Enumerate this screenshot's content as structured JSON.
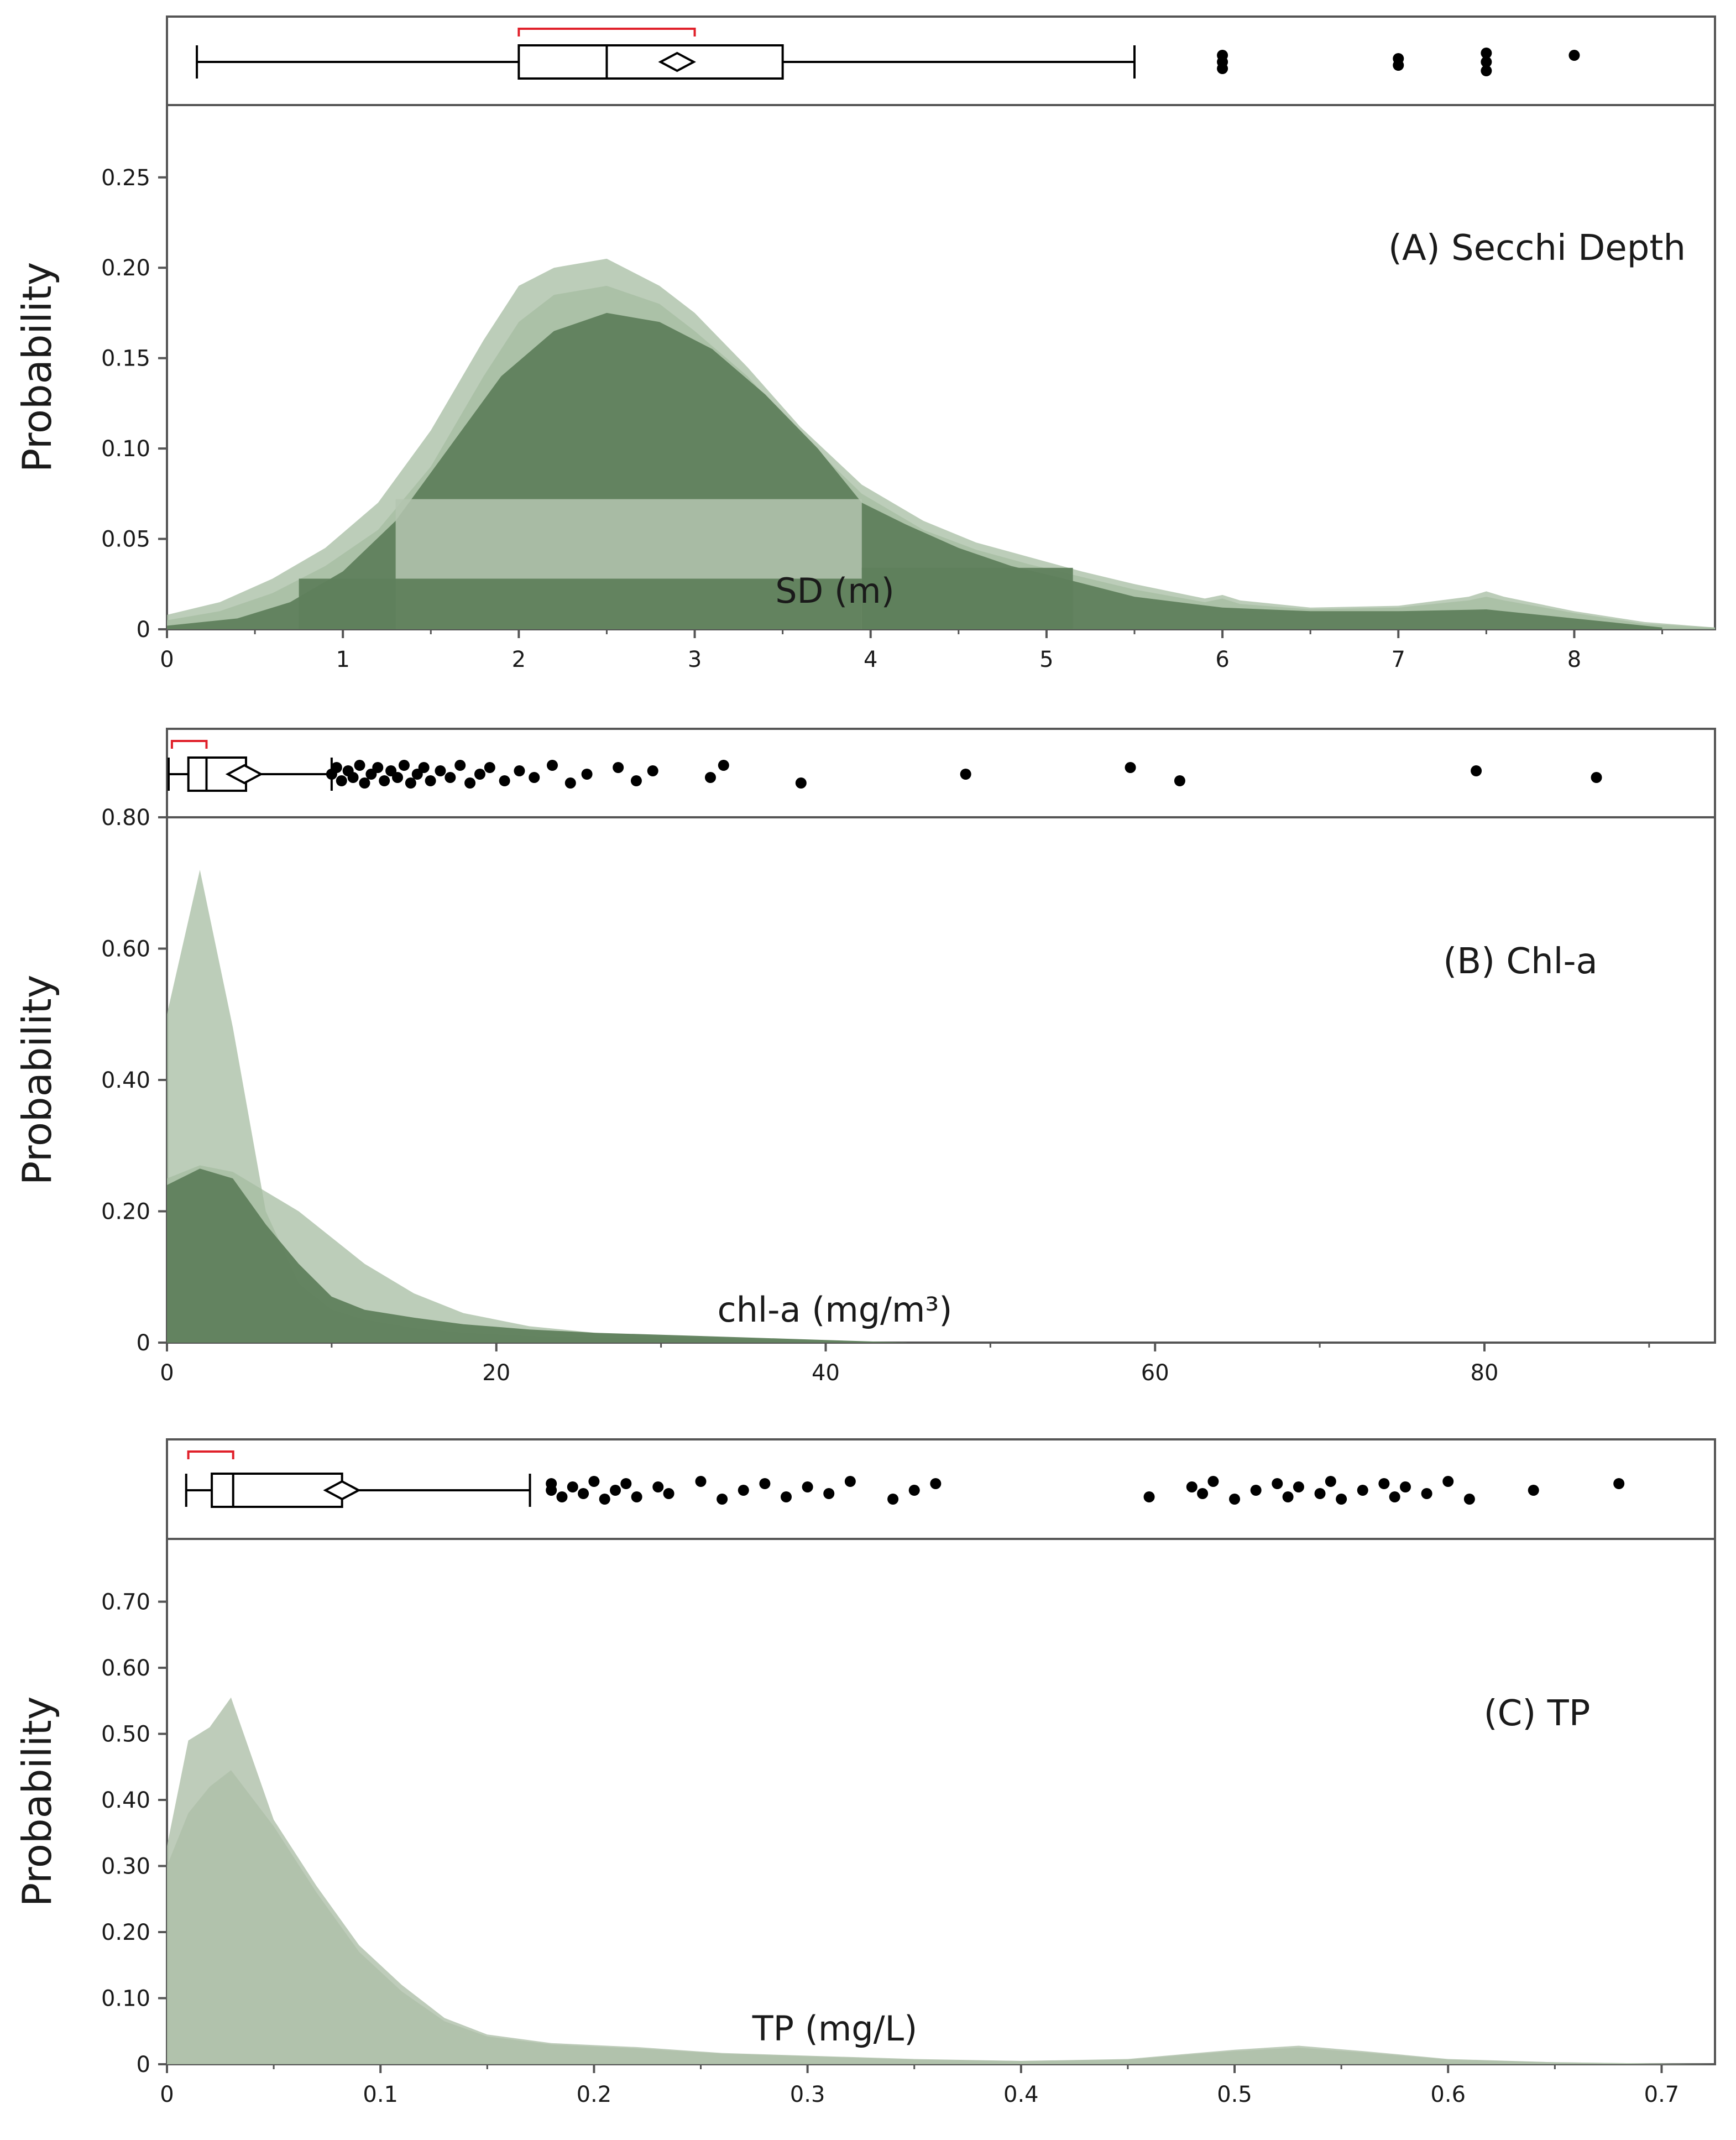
{
  "figure": {
    "colors": {
      "dark_fill": "#5f7f5c",
      "light_fill": "#a6bca2",
      "pale_fill": "#b4c6b0",
      "tp_fill": "#aebfa9",
      "frame": "#555555",
      "bracket": "#e0202a",
      "outlier": "#000000"
    }
  },
  "chart_data": [
    {
      "id": "A",
      "type": "area",
      "title": "(A) Secchi Depth",
      "xlabel": "SD (m)",
      "ylabel": "Probability",
      "xlim": [
        0,
        8.8
      ],
      "ylim": [
        0,
        0.29
      ],
      "xticks": [
        0,
        1,
        2,
        3,
        4,
        5,
        6,
        7,
        8
      ],
      "xtick_labels": [
        "0",
        "1",
        "2",
        "3",
        "4",
        "5",
        "6",
        "7",
        "8"
      ],
      "yticks": [
        0,
        0.05,
        0.1,
        0.15,
        0.2,
        0.25
      ],
      "ytick_labels": [
        "0",
        "0.05",
        "0.10",
        "0.15",
        "0.20",
        "0.25"
      ],
      "series": [
        {
          "name": "outer density",
          "style": "light",
          "x": [
            0,
            0.3,
            0.6,
            0.9,
            1.2,
            1.5,
            1.8,
            2.0,
            2.2,
            2.5,
            2.8,
            3.0,
            3.3,
            3.6,
            3.95,
            4.3,
            4.6,
            4.9,
            5.2,
            5.5,
            5.9,
            6.0,
            6.1,
            6.5,
            7.0,
            7.4,
            7.5,
            7.6,
            8.0,
            8.4,
            8.8
          ],
          "y": [
            0.008,
            0.015,
            0.028,
            0.045,
            0.07,
            0.11,
            0.16,
            0.19,
            0.2,
            0.205,
            0.19,
            0.175,
            0.145,
            0.112,
            0.08,
            0.06,
            0.048,
            0.04,
            0.032,
            0.025,
            0.017,
            0.019,
            0.016,
            0.012,
            0.013,
            0.018,
            0.021,
            0.018,
            0.01,
            0.004,
            0.001
          ]
        },
        {
          "name": "mid density",
          "style": "light",
          "x": [
            0,
            0.3,
            0.6,
            0.9,
            1.2,
            1.5,
            1.8,
            2.0,
            2.2,
            2.5,
            2.8,
            3.0,
            3.3,
            3.6,
            3.95,
            4.3,
            4.6,
            4.9,
            5.2,
            5.5,
            5.9,
            6.0,
            6.1,
            6.5,
            7.0,
            7.4,
            7.5,
            7.6,
            8.0,
            8.4,
            8.8
          ],
          "y": [
            0.005,
            0.01,
            0.02,
            0.035,
            0.055,
            0.09,
            0.14,
            0.17,
            0.185,
            0.19,
            0.18,
            0.165,
            0.14,
            0.108,
            0.075,
            0.055,
            0.044,
            0.036,
            0.029,
            0.022,
            0.015,
            0.017,
            0.014,
            0.011,
            0.012,
            0.016,
            0.018,
            0.016,
            0.009,
            0.003,
            0.001
          ]
        },
        {
          "name": "inner density",
          "style": "dark",
          "x": [
            0,
            0.4,
            0.7,
            1.0,
            1.3,
            1.6,
            1.9,
            2.2,
            2.5,
            2.8,
            3.1,
            3.4,
            3.7,
            3.95,
            4.2,
            4.5,
            4.8,
            5.1,
            5.5,
            6.0,
            6.5,
            7.0,
            7.5,
            8.0,
            8.5
          ],
          "y": [
            0.002,
            0.006,
            0.015,
            0.032,
            0.06,
            0.1,
            0.14,
            0.165,
            0.175,
            0.17,
            0.155,
            0.13,
            0.1,
            0.07,
            0.058,
            0.045,
            0.035,
            0.028,
            0.018,
            0.012,
            0.01,
            0.01,
            0.011,
            0.006,
            0.001
          ]
        }
      ],
      "bands": [
        {
          "x0": 1.3,
          "x1": 3.95,
          "y": 0.072,
          "style": "pale"
        },
        {
          "x0": 0.75,
          "x1": 3.95,
          "y": 0.028,
          "style": "dark"
        },
        {
          "x0": 3.95,
          "x1": 5.15,
          "y": 0.034,
          "style": "dark"
        }
      ],
      "boxplot": {
        "whisker_low": 0.17,
        "q1": 2.0,
        "median": 2.5,
        "q3": 3.5,
        "whisker_high": 5.5,
        "mean": 2.9,
        "shortest_half": [
          2.0,
          3.0
        ],
        "outliers": [
          6.0,
          6.0,
          6.0,
          7.0,
          7.0,
          7.5,
          7.5,
          7.5,
          8.0
        ]
      }
    },
    {
      "id": "B",
      "type": "area",
      "title": "(B) Chl-a",
      "xlabel": "chl-a (mg/m³)",
      "ylabel": "Probability",
      "xlim": [
        0,
        94
      ],
      "ylim": [
        0,
        0.8
      ],
      "xticks": [
        0,
        20,
        40,
        60,
        80
      ],
      "xtick_labels": [
        "0",
        "20",
        "40",
        "60",
        "80"
      ],
      "yticks": [
        0,
        0.2,
        0.4,
        0.6,
        0.8
      ],
      "ytick_labels": [
        "0",
        "0.20",
        "0.40",
        "0.60",
        "0.80"
      ],
      "series": [
        {
          "name": "outer density",
          "style": "light",
          "x": [
            0,
            2,
            4,
            6,
            8,
            10,
            12,
            15,
            18,
            22,
            26,
            30,
            35,
            40,
            45
          ],
          "y": [
            0.5,
            0.72,
            0.48,
            0.2,
            0.09,
            0.05,
            0.035,
            0.022,
            0.015,
            0.01,
            0.008,
            0.006,
            0.004,
            0.002,
            0.0
          ]
        },
        {
          "name": "mid density",
          "style": "light",
          "x": [
            0,
            2,
            4,
            6,
            8,
            10,
            12,
            15,
            18,
            22,
            26,
            30,
            35,
            40,
            45
          ],
          "y": [
            0.25,
            0.27,
            0.26,
            0.23,
            0.2,
            0.16,
            0.12,
            0.075,
            0.045,
            0.025,
            0.015,
            0.01,
            0.006,
            0.003,
            0.0
          ]
        },
        {
          "name": "inner density",
          "style": "dark",
          "x": [
            0,
            2,
            4,
            6,
            8,
            10,
            12,
            15,
            18,
            22,
            26,
            30,
            35,
            40,
            45
          ],
          "y": [
            0.24,
            0.265,
            0.25,
            0.18,
            0.12,
            0.07,
            0.05,
            0.038,
            0.028,
            0.02,
            0.015,
            0.012,
            0.008,
            0.004,
            0.0
          ]
        }
      ],
      "bands": [],
      "boxplot": {
        "whisker_low": 0.1,
        "q1": 1.3,
        "median": 2.4,
        "q3": 4.8,
        "whisker_high": 10.0,
        "mean": 4.7,
        "shortest_half": [
          0.3,
          2.4
        ],
        "outliers": [
          10,
          10.3,
          10.6,
          11,
          11.3,
          11.7,
          12,
          12.4,
          12.8,
          13.2,
          13.6,
          14,
          14.4,
          14.8,
          15.2,
          15.6,
          16,
          16.6,
          17.2,
          17.8,
          18.4,
          19,
          19.6,
          20.5,
          21.4,
          22.3,
          23.4,
          24.5,
          25.5,
          27.4,
          28.5,
          29.5,
          33,
          33.8,
          38.5,
          48.5,
          58.5,
          61.5,
          79.5,
          86.8
        ]
      }
    },
    {
      "id": "C",
      "type": "area",
      "title": "(C)  TP",
      "xlabel": "TP (mg/L)",
      "ylabel": "Probability",
      "xlim": [
        0,
        0.725
      ],
      "ylim": [
        0,
        0.795
      ],
      "xticks": [
        0,
        0.1,
        0.2,
        0.3,
        0.4,
        0.5,
        0.6,
        0.7
      ],
      "xtick_labels": [
        "0",
        "0.1",
        "0.2",
        "0.3",
        "0.4",
        "0.5",
        "0.6",
        "0.7"
      ],
      "yticks": [
        0,
        0.1,
        0.2,
        0.3,
        0.4,
        0.5,
        0.6,
        0.7
      ],
      "ytick_labels": [
        "0",
        "0.10",
        "0.20",
        "0.30",
        "0.40",
        "0.50",
        "0.60",
        "0.70"
      ],
      "series": [
        {
          "name": "outer density",
          "style": "tp",
          "x": [
            0,
            0.01,
            0.02,
            0.03,
            0.05,
            0.07,
            0.09,
            0.11,
            0.13,
            0.15,
            0.18,
            0.22,
            0.26,
            0.3,
            0.35,
            0.4,
            0.45,
            0.5,
            0.53,
            0.56,
            0.6,
            0.65,
            0.7,
            0.725
          ],
          "y": [
            0.33,
            0.49,
            0.51,
            0.555,
            0.37,
            0.27,
            0.18,
            0.12,
            0.07,
            0.045,
            0.032,
            0.026,
            0.017,
            0.013,
            0.008,
            0.005,
            0.008,
            0.022,
            0.028,
            0.02,
            0.008,
            0.003,
            0.001,
            0.0
          ]
        },
        {
          "name": "inner density",
          "style": "tp",
          "x": [
            0,
            0.01,
            0.02,
            0.03,
            0.05,
            0.07,
            0.09,
            0.11,
            0.13,
            0.15,
            0.18,
            0.22,
            0.26,
            0.3,
            0.35,
            0.4,
            0.45,
            0.5,
            0.53,
            0.56,
            0.6,
            0.65,
            0.7,
            0.725
          ],
          "y": [
            0.3,
            0.38,
            0.42,
            0.445,
            0.36,
            0.26,
            0.17,
            0.11,
            0.065,
            0.042,
            0.03,
            0.024,
            0.016,
            0.012,
            0.007,
            0.005,
            0.007,
            0.02,
            0.025,
            0.018,
            0.007,
            0.003,
            0.001,
            0.0
          ]
        }
      ],
      "bands": [],
      "boxplot": {
        "whisker_low": 0.009,
        "q1": 0.021,
        "median": 0.031,
        "q3": 0.082,
        "whisker_high": 0.17,
        "mean": 0.082,
        "shortest_half": [
          0.01,
          0.031
        ],
        "outliers": [
          0.18,
          0.18,
          0.185,
          0.19,
          0.195,
          0.2,
          0.205,
          0.21,
          0.215,
          0.22,
          0.23,
          0.235,
          0.25,
          0.26,
          0.27,
          0.28,
          0.29,
          0.3,
          0.31,
          0.32,
          0.34,
          0.35,
          0.36,
          0.46,
          0.48,
          0.485,
          0.49,
          0.5,
          0.51,
          0.52,
          0.525,
          0.53,
          0.54,
          0.545,
          0.55,
          0.56,
          0.57,
          0.575,
          0.58,
          0.59,
          0.6,
          0.61,
          0.64,
          0.68
        ]
      }
    }
  ]
}
